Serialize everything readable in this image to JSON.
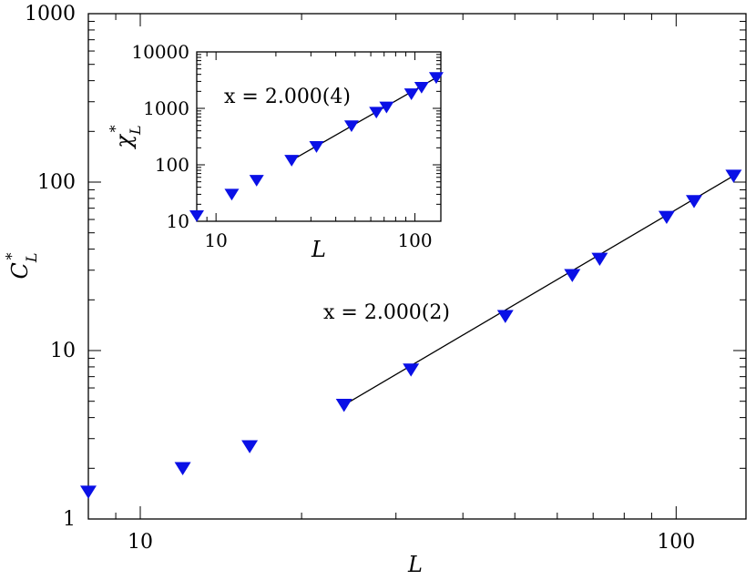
{
  "chart_data": [
    {
      "type": "scatter",
      "scale": "log-log",
      "xlabel": "L",
      "ylabel": "C*_L",
      "xlim": [
        8,
        135
      ],
      "ylim": [
        1,
        1000
      ],
      "x_ticks": [
        10,
        100
      ],
      "y_ticks": [
        1,
        10,
        100,
        1000
      ],
      "x_tick_labels": [
        "10",
        "100"
      ],
      "y_tick_labels": [
        "1",
        "10",
        "100",
        "1000"
      ],
      "marker_color": "#0a10e6",
      "series": [
        {
          "x": [
            8,
            12,
            16,
            24,
            32,
            48,
            64,
            72,
            96,
            108,
            128
          ],
          "y": [
            1.45,
            2.0,
            2.7,
            4.75,
            7.7,
            16.0,
            28.0,
            35.0,
            62.0,
            77.0,
            109.0
          ]
        }
      ],
      "fit": {
        "x_range": [
          24,
          128
        ],
        "y_range": [
          4.75,
          109.0
        ]
      },
      "annotation": "x = 2.000(2)"
    },
    {
      "type": "scatter",
      "scale": "log-log",
      "xlabel": "L",
      "ylabel": "χ*_L",
      "xlim": [
        8,
        135
      ],
      "ylim": [
        10,
        10000
      ],
      "x_ticks": [
        10,
        100
      ],
      "y_ticks": [
        10,
        100,
        1000,
        10000
      ],
      "x_tick_labels": [
        "10",
        "100"
      ],
      "y_tick_labels": [
        "10",
        "100",
        "1000",
        "10000"
      ],
      "marker_color": "#0a10e6",
      "series": [
        {
          "x": [
            8,
            12,
            16,
            24,
            32,
            48,
            64,
            72,
            96,
            108,
            128
          ],
          "y": [
            12.5,
            30.0,
            53.0,
            120.0,
            210.0,
            490.0,
            850.0,
            1050.0,
            1800.0,
            2350.0,
            3500.0
          ]
        }
      ],
      "fit": {
        "x_range": [
          24,
          128
        ],
        "y_range": [
          120.0,
          3500.0
        ]
      },
      "annotation": "x = 2.000(4)"
    }
  ]
}
